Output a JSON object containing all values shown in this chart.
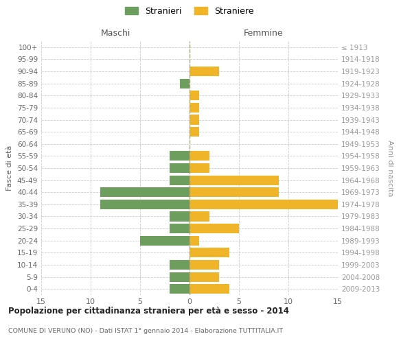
{
  "age_groups": [
    "0-4",
    "5-9",
    "10-14",
    "15-19",
    "20-24",
    "25-29",
    "30-34",
    "35-39",
    "40-44",
    "45-49",
    "50-54",
    "55-59",
    "60-64",
    "65-69",
    "70-74",
    "75-79",
    "80-84",
    "85-89",
    "90-94",
    "95-99",
    "100+"
  ],
  "birth_years": [
    "2009-2013",
    "2004-2008",
    "1999-2003",
    "1994-1998",
    "1989-1993",
    "1984-1988",
    "1979-1983",
    "1974-1978",
    "1969-1973",
    "1964-1968",
    "1959-1963",
    "1954-1958",
    "1949-1953",
    "1944-1948",
    "1939-1943",
    "1934-1938",
    "1929-1933",
    "1924-1928",
    "1919-1923",
    "1914-1918",
    "≤ 1913"
  ],
  "males": [
    2,
    2,
    2,
    0,
    5,
    2,
    2,
    9,
    9,
    2,
    2,
    2,
    0,
    0,
    0,
    0,
    0,
    1,
    0,
    0,
    0
  ],
  "females": [
    4,
    3,
    3,
    4,
    1,
    5,
    2,
    15,
    9,
    9,
    2,
    2,
    0,
    1,
    1,
    1,
    1,
    0,
    3,
    0,
    0
  ],
  "male_color": "#6e9e5e",
  "female_color": "#f0b429",
  "title": "Popolazione per cittadinanza straniera per età e sesso - 2014",
  "subtitle": "COMUNE DI VERUNO (NO) - Dati ISTAT 1° gennaio 2014 - Elaborazione TUTTITALIA.IT",
  "xlabel_left": "Maschi",
  "xlabel_right": "Femmine",
  "ylabel_left": "Fasce di età",
  "ylabel_right": "Anni di nascita",
  "legend_males": "Stranieri",
  "legend_females": "Straniere",
  "xlim": 15,
  "background_color": "#ffffff",
  "grid_color": "#cccccc",
  "bar_height": 0.8
}
